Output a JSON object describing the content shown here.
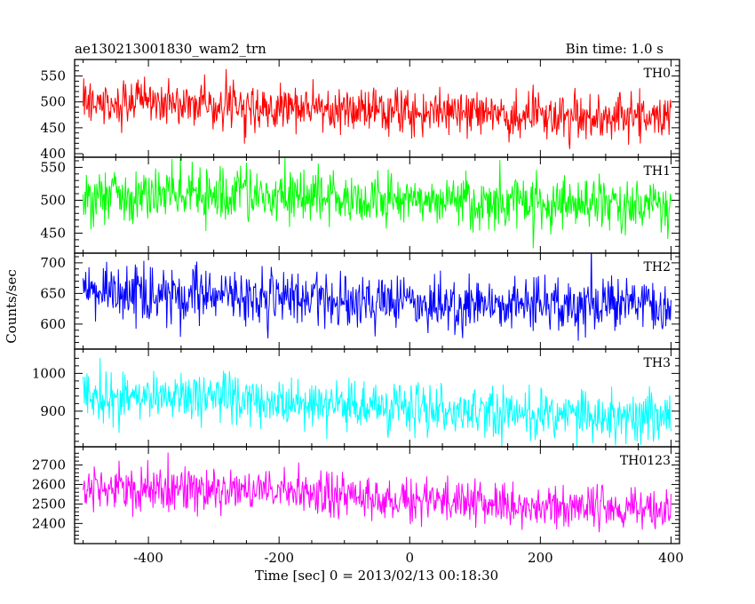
{
  "header": {
    "left": "ae130213001830_wam2_trn",
    "right": "Bin time: 1.0 s"
  },
  "chart_data": {
    "type": "line",
    "title": "ae130213001830_wam2_trn",
    "bin_time": "Bin time: 1.0 s",
    "xlabel": "Time [sec] 0 = 2013/02/13 00:18:30",
    "ylabel": "Counts/sec",
    "xlim": [
      -513,
      413
    ],
    "x_ticks": [
      -400,
      -200,
      0,
      200,
      400
    ],
    "x_range_data": [
      -500,
      400
    ],
    "bin_sec": 1.0,
    "panels": [
      {
        "name": "TH0",
        "color": "#ff0000",
        "ylim": [
          400,
          575
        ],
        "y_ticks": [
          400,
          450,
          500,
          550
        ],
        "trend": [
          [
            -500,
            505
          ],
          [
            -300,
            497
          ],
          [
            -100,
            487
          ],
          [
            100,
            478
          ],
          [
            400,
            467
          ]
        ],
        "noise_sd": 22
      },
      {
        "name": "TH1",
        "color": "#00ff00",
        "ylim": [
          425,
          560
        ],
        "y_ticks": [
          450,
          500,
          550
        ],
        "trend": [
          [
            -500,
            510
          ],
          [
            -300,
            507
          ],
          [
            -100,
            502
          ],
          [
            100,
            496
          ],
          [
            400,
            490
          ]
        ],
        "noise_sd": 20
      },
      {
        "name": "TH2",
        "color": "#0000ff",
        "ylim": [
          565,
          710
        ],
        "y_ticks": [
          600,
          650,
          700
        ],
        "trend": [
          [
            -500,
            650
          ],
          [
            -300,
            645
          ],
          [
            -100,
            638
          ],
          [
            100,
            632
          ],
          [
            400,
            630
          ]
        ],
        "noise_sd": 22
      },
      {
        "name": "TH3",
        "color": "#00ffff",
        "ylim": [
          815,
          1055
        ],
        "y_ticks": [
          900,
          1000
        ],
        "trend": [
          [
            -500,
            945
          ],
          [
            -300,
            935
          ],
          [
            -100,
            915
          ],
          [
            100,
            898
          ],
          [
            400,
            885
          ]
        ],
        "noise_sd": 32
      },
      {
        "name": "TH0123",
        "color": "#ff00ff",
        "ylim": [
          2315,
          2775
        ],
        "y_ticks": [
          2400,
          2500,
          2600,
          2700
        ],
        "trend": [
          [
            -500,
            2585
          ],
          [
            -300,
            2570
          ],
          [
            -100,
            2540
          ],
          [
            100,
            2505
          ],
          [
            400,
            2465
          ]
        ],
        "noise_sd": 55
      }
    ],
    "grid": false,
    "legend": "none"
  }
}
